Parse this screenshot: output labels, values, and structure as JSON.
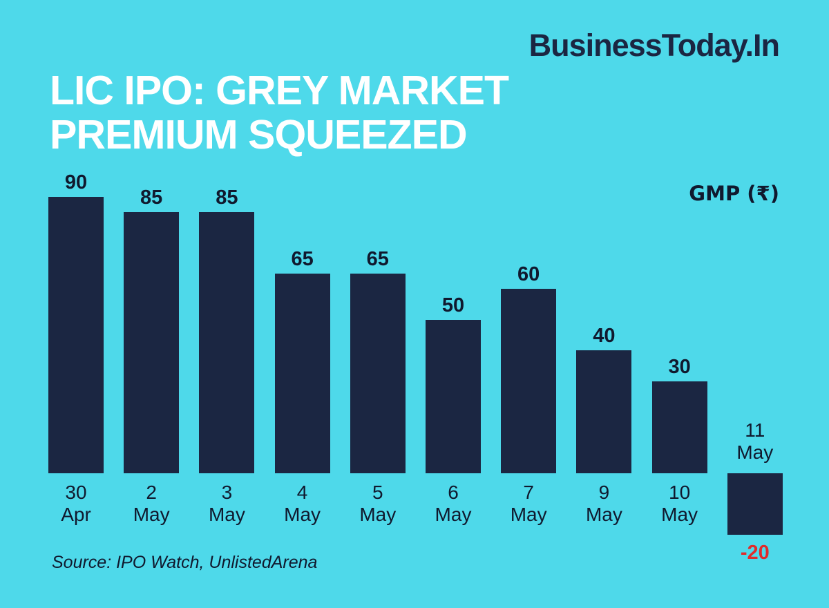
{
  "header": {
    "logo": "BusinessToday.In",
    "title_line1": "LIC IPO: GREY MARKET",
    "title_line2": "PREMIUM SQUEEZED"
  },
  "chart_data": {
    "type": "bar",
    "title": "LIC IPO: GREY MARKET PREMIUM SQUEEZED",
    "unit_label": "GMP (₹)",
    "categories": [
      "30 Apr",
      "2 May",
      "3 May",
      "4 May",
      "5 May",
      "6 May",
      "7 May",
      "9 May",
      "10 May",
      "11 May"
    ],
    "values": [
      90,
      85,
      85,
      65,
      65,
      50,
      60,
      40,
      30,
      -20
    ],
    "ylim": [
      -20,
      90
    ],
    "grid": false,
    "legend": false,
    "xlabel": "",
    "ylabel": "GMP (₹)",
    "background_color": "#4ED9EA",
    "bar_color": "#1B2642",
    "text_color": "#10192E",
    "negative_value_color": "#E02B2B"
  },
  "footer": {
    "source": "Source: IPO Watch, UnlistedArena"
  }
}
